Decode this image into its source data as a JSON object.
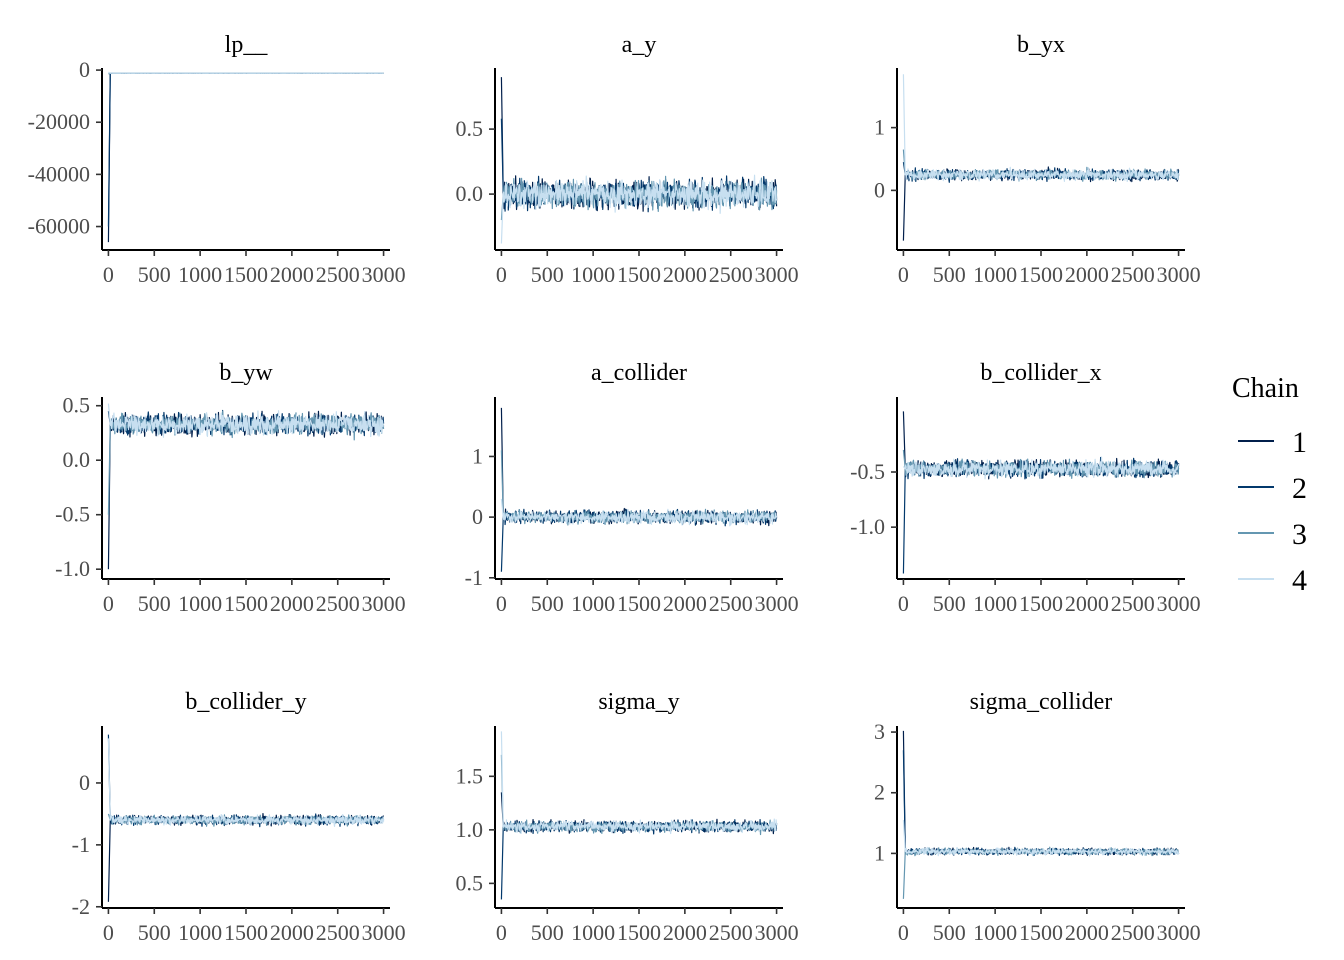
{
  "chart_data": {
    "type": "line",
    "legend": {
      "title": "Chain",
      "placement": "right",
      "entries": [
        {
          "label": "1",
          "color": "#011f4b"
        },
        {
          "label": "2",
          "color": "#03396c"
        },
        {
          "label": "3",
          "color": "#6497b1"
        },
        {
          "label": "4",
          "color": "#c7dff0"
        }
      ]
    },
    "x_ticks": [
      0,
      500,
      1000,
      1500,
      2000,
      2500,
      3000
    ],
    "x_tick_labels": [
      "0",
      "500",
      "1000",
      "1500",
      "2000",
      "2500",
      "3000"
    ],
    "xlim": [
      -70,
      3070
    ],
    "grid": false,
    "panels": [
      {
        "title": "lp__",
        "ylim": [
          -69000,
          800
        ],
        "y_ticks": [
          0,
          -20000,
          -40000,
          -60000
        ],
        "y_tick_labels": [
          "0",
          "-20000",
          "-40000",
          "-60000"
        ],
        "init": [
          -66000,
          -60000,
          -1500,
          -800
        ],
        "center": -1200,
        "spread": 6,
        "per_chain": [
          0,
          0,
          0,
          0
        ]
      },
      {
        "title": "a_y",
        "ylim": [
          -0.43,
          0.97
        ],
        "y_ticks": [
          0.5,
          0.0
        ],
        "y_tick_labels": [
          "0.5",
          "0.0"
        ],
        "init": [
          0.9,
          0.58,
          -0.2,
          -0.38
        ],
        "center": 0.0,
        "spread": 0.05,
        "per_chain": [
          0,
          0,
          0,
          0
        ]
      },
      {
        "title": "b_yx",
        "ylim": [
          -0.95,
          1.95
        ],
        "y_ticks": [
          1,
          0
        ],
        "y_tick_labels": [
          "1",
          "0"
        ],
        "init": [
          -0.8,
          0.45,
          0.65,
          1.85
        ],
        "center": 0.25,
        "spread": 0.04,
        "per_chain": [
          0,
          0,
          0,
          0
        ]
      },
      {
        "title": "b_yw",
        "ylim": [
          -1.09,
          0.58
        ],
        "y_ticks": [
          0.5,
          0.0,
          -0.5,
          -1.0
        ],
        "y_tick_labels": [
          "0.5",
          "0.0",
          "-0.5",
          "-1.0"
        ],
        "init": [
          -1.0,
          0.45,
          -0.5,
          0.52
        ],
        "center": 0.33,
        "spread": 0.045,
        "per_chain": [
          0,
          0,
          0,
          0
        ]
      },
      {
        "title": "a_collider",
        "ylim": [
          -1.02,
          1.98
        ],
        "y_ticks": [
          1,
          0,
          -1
        ],
        "y_tick_labels": [
          "1",
          "0",
          "-1"
        ],
        "init": [
          1.8,
          -0.9,
          1.1,
          0.3
        ],
        "center": 0.0,
        "spread": 0.05,
        "per_chain": [
          0,
          0,
          0,
          0
        ]
      },
      {
        "title": "b_collider_x",
        "ylim": [
          -1.47,
          0.18
        ],
        "y_ticks": [
          -0.5,
          -1.0
        ],
        "y_tick_labels": [
          "-0.5",
          "-1.0"
        ],
        "init": [
          0.05,
          -1.42,
          -0.3,
          -0.45
        ],
        "center": -0.47,
        "spread": 0.035,
        "per_chain": [
          0,
          0,
          0,
          0
        ]
      },
      {
        "title": "b_collider_y",
        "ylim": [
          -2.02,
          0.92
        ],
        "y_ticks": [
          0,
          -1,
          -2
        ],
        "y_tick_labels": [
          "0",
          "-1",
          "-2"
        ],
        "init": [
          -1.92,
          0.78,
          -0.5,
          0.72
        ],
        "center": -0.6,
        "spread": 0.035,
        "per_chain": [
          0,
          0,
          0,
          0
        ]
      },
      {
        "title": "sigma_y",
        "ylim": [
          0.27,
          1.97
        ],
        "y_ticks": [
          1.5,
          1.0,
          0.5
        ],
        "y_tick_labels": [
          "1.5",
          "1.0",
          "0.5"
        ],
        "init": [
          1.35,
          0.35,
          1.7,
          1.92
        ],
        "center": 1.03,
        "spread": 0.025,
        "per_chain": [
          0,
          0,
          0,
          0
        ]
      },
      {
        "title": "sigma_collider",
        "ylim": [
          0.1,
          3.1
        ],
        "y_ticks": [
          3,
          2,
          1
        ],
        "y_tick_labels": [
          "3",
          "2",
          "1"
        ],
        "init": [
          3.02,
          2.7,
          0.25,
          1.55
        ],
        "center": 1.03,
        "spread": 0.025,
        "per_chain": [
          0,
          0,
          0,
          0
        ]
      }
    ]
  }
}
